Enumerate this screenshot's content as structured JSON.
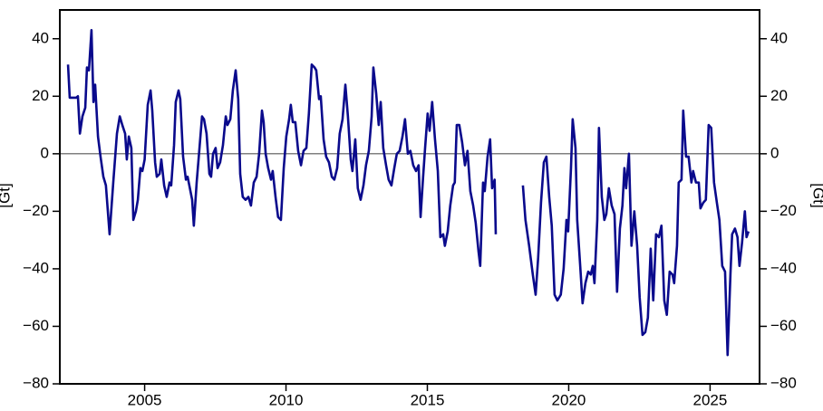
{
  "chart_data": {
    "type": "line",
    "ylabel": "[Gt]",
    "xlim": [
      2002,
      2026.75
    ],
    "ylim": [
      -80,
      50
    ],
    "xticks": [
      2005,
      2010,
      2015,
      2020,
      2025
    ],
    "yticks": [
      {
        "value": -80,
        "label": "−80"
      },
      {
        "value": -60,
        "label": "−60"
      },
      {
        "value": -40,
        "label": "−40"
      },
      {
        "value": -20,
        "label": "−20"
      },
      0,
      20,
      40
    ],
    "reference_line": 0,
    "x": [
      2002.29,
      2002.35,
      2002.58,
      2002.64,
      2002.71,
      2002.8,
      2002.9,
      2002.96,
      2003.03,
      2003.12,
      2003.19,
      2003.25,
      2003.35,
      2003.44,
      2003.54,
      2003.63,
      2003.76,
      2003.89,
      2004.02,
      2004.12,
      2004.21,
      2004.31,
      2004.37,
      2004.44,
      2004.53,
      2004.6,
      2004.69,
      2004.76,
      2004.85,
      2004.92,
      2005.0,
      2005.11,
      2005.21,
      2005.27,
      2005.37,
      2005.43,
      2005.53,
      2005.59,
      2005.69,
      2005.78,
      2005.88,
      2005.94,
      2006.04,
      2006.1,
      2006.2,
      2006.26,
      2006.36,
      2006.46,
      2006.52,
      2006.58,
      2006.68,
      2006.74,
      2006.84,
      2006.94,
      2007.03,
      2007.1,
      2007.19,
      2007.29,
      2007.35,
      2007.42,
      2007.51,
      2007.58,
      2007.67,
      2007.77,
      2007.87,
      2007.93,
      2008.03,
      2008.12,
      2008.22,
      2008.31,
      2008.38,
      2008.47,
      2008.57,
      2008.67,
      2008.76,
      2008.86,
      2008.96,
      2009.05,
      2009.15,
      2009.21,
      2009.28,
      2009.37,
      2009.47,
      2009.53,
      2009.63,
      2009.72,
      2009.82,
      2009.92,
      2010.01,
      2010.11,
      2010.17,
      2010.24,
      2010.33,
      2010.43,
      2010.53,
      2010.62,
      2010.72,
      2010.81,
      2010.91,
      2011.01,
      2011.07,
      2011.17,
      2011.23,
      2011.33,
      2011.42,
      2011.52,
      2011.62,
      2011.71,
      2011.81,
      2011.9,
      2012.0,
      2012.1,
      2012.19,
      2012.29,
      2012.35,
      2012.45,
      2012.54,
      2012.64,
      2012.74,
      2012.83,
      2012.93,
      2013.03,
      2013.09,
      2013.19,
      2013.28,
      2013.35,
      2013.44,
      2013.54,
      2013.63,
      2013.73,
      2013.83,
      2013.92,
      2014.02,
      2014.12,
      2014.21,
      2014.31,
      2014.4,
      2014.5,
      2014.6,
      2014.69,
      2014.76,
      2014.85,
      2014.92,
      2015.01,
      2015.08,
      2015.17,
      2015.27,
      2015.37,
      2015.46,
      2015.56,
      2015.62,
      2015.72,
      2015.81,
      2015.91,
      2015.97,
      2016.04,
      2016.13,
      2016.23,
      2016.33,
      2016.42,
      2016.52,
      2016.62,
      2016.71,
      2016.81,
      2016.87,
      2016.97,
      2017.03,
      2017.13,
      2017.22,
      2017.29,
      2017.38,
      2017.42,
      2017.9,
      2018.38,
      2018.47,
      2018.6,
      2018.73,
      2018.83,
      2018.92,
      2019.02,
      2019.12,
      2019.21,
      2019.31,
      2019.4,
      2019.5,
      2019.6,
      2019.72,
      2019.82,
      2019.92,
      2019.98,
      2020.08,
      2020.14,
      2020.24,
      2020.3,
      2020.4,
      2020.49,
      2020.59,
      2020.69,
      2020.78,
      2020.85,
      2020.91,
      2021.01,
      2021.07,
      2021.17,
      2021.26,
      2021.33,
      2021.42,
      2021.52,
      2021.62,
      2021.71,
      2021.81,
      2021.9,
      2021.97,
      2022.03,
      2022.13,
      2022.22,
      2022.32,
      2022.42,
      2022.51,
      2022.61,
      2022.71,
      2022.8,
      2022.9,
      2022.99,
      2023.09,
      2023.19,
      2023.28,
      2023.38,
      2023.47,
      2023.57,
      2023.67,
      2023.73,
      2023.83,
      2023.89,
      2023.99,
      2024.05,
      2024.15,
      2024.24,
      2024.34,
      2024.4,
      2024.5,
      2024.6,
      2024.66,
      2024.76,
      2024.85,
      2024.95,
      2025.04,
      2025.14,
      2025.24,
      2025.33,
      2025.43,
      2025.53,
      2025.62,
      2025.72,
      2025.78,
      2025.88,
      2025.97,
      2026.04,
      2026.13,
      2026.23,
      2026.29,
      2026.36
    ],
    "series": [
      {
        "color": "#0a0a8c",
        "values": [
          31,
          19.5,
          19.5,
          20,
          7,
          13,
          16,
          30,
          29,
          43,
          18,
          24,
          6,
          -1,
          -8,
          -11,
          -28,
          -10,
          7,
          13,
          10,
          7,
          -2,
          6,
          2,
          -23,
          -20,
          -16,
          -5,
          -6,
          -2,
          17,
          22,
          15,
          -3,
          -8,
          -7,
          -2,
          -11,
          -15,
          -10,
          -11,
          3,
          18,
          22,
          19,
          -1,
          -9,
          -8,
          -11,
          -16,
          -25,
          -10,
          2,
          13,
          12,
          7,
          -7,
          -8,
          0,
          2,
          -5,
          -3,
          3,
          13,
          10,
          12,
          22,
          29,
          19,
          -7,
          -15,
          -16,
          -15,
          -18,
          -10,
          -8,
          0,
          15,
          11,
          0,
          -5,
          -9,
          -6,
          -15,
          -22,
          -23,
          -5,
          6,
          12,
          17,
          11,
          11,
          1,
          -4,
          1,
          2,
          14,
          31,
          30,
          29,
          19,
          20,
          5,
          -1,
          -3,
          -8,
          -9,
          -5,
          7,
          12,
          24,
          13,
          -2,
          -6,
          5,
          -12,
          -16,
          -11,
          -4,
          1,
          13,
          30,
          21,
          10,
          18,
          2,
          -4,
          -9,
          -11,
          -5,
          0,
          1,
          6,
          12,
          0,
          1,
          -4,
          -6,
          -4,
          -22,
          -8,
          2,
          14,
          8,
          18,
          5,
          -6,
          -29,
          -28,
          -32,
          -27,
          -18,
          -11,
          -10,
          10,
          10,
          4,
          -4,
          1,
          -13,
          -18,
          -24,
          -34,
          -39,
          -10,
          -13,
          -1,
          5,
          -12,
          -9,
          -28,
          null,
          -11,
          -23,
          -32,
          -42,
          -49,
          -36,
          -17,
          -3,
          -1,
          -15,
          -25,
          -49,
          -51,
          -49,
          -40,
          -23,
          -27,
          -5,
          12,
          2,
          -23,
          -38,
          -52,
          -45,
          -41,
          -42,
          -39,
          -45,
          -23,
          9,
          -15,
          -23,
          -21,
          -12,
          -18,
          -21,
          -48,
          -26,
          -18,
          -5,
          -12,
          0,
          -32,
          -20,
          -32,
          -50,
          -63,
          -62,
          -57,
          -33,
          -51,
          -28,
          -29,
          -25,
          -51,
          -56,
          -41,
          -42,
          -45,
          -32,
          -10,
          -9,
          15,
          -1,
          -1,
          -10,
          -6,
          -10,
          -10,
          -19,
          -17,
          -16,
          10,
          9,
          -10,
          -17,
          -23,
          -39,
          -41,
          -70,
          -42,
          -28,
          -26,
          -29,
          -39,
          -31,
          -20,
          -29,
          -27
        ]
      }
    ]
  }
}
